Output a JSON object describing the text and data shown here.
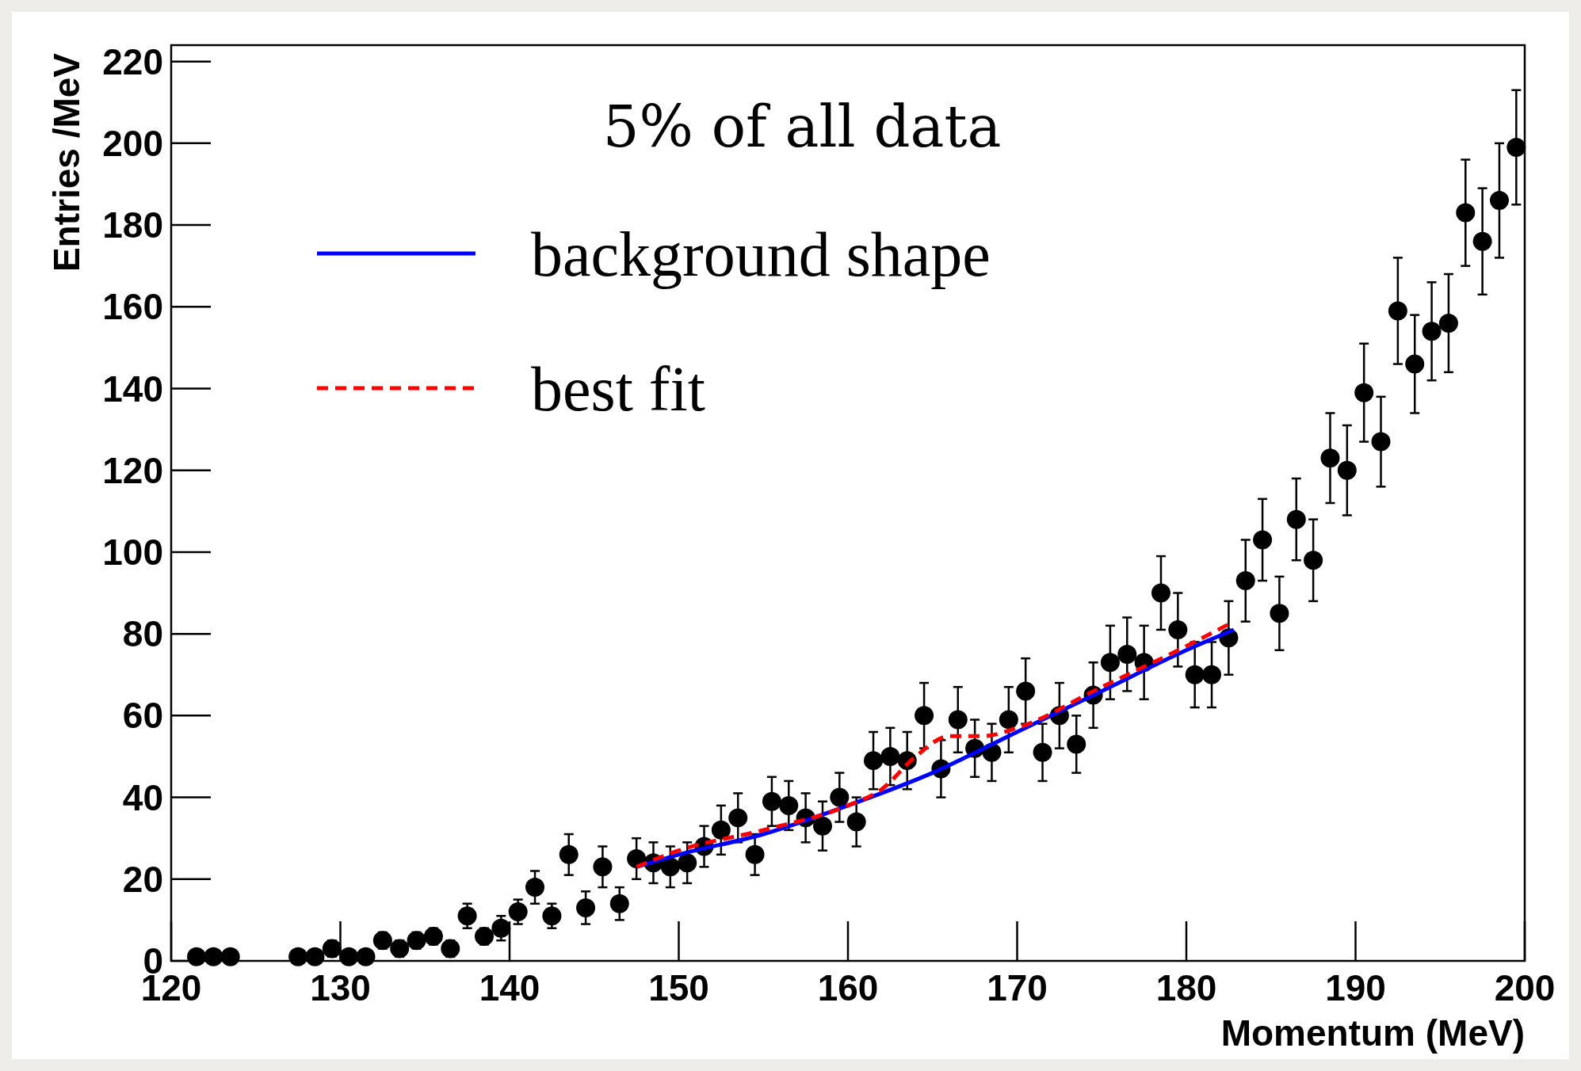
{
  "chart_data": {
    "type": "scatter",
    "xlabel": "Momentum (MeV)",
    "ylabel": "Entries /MeV",
    "annotations": [
      "5% of all data"
    ],
    "xlim": [
      120,
      200
    ],
    "ylim": [
      0,
      224
    ],
    "xticks": [
      120,
      130,
      140,
      150,
      160,
      170,
      180,
      190,
      200
    ],
    "yticks": [
      0,
      20,
      40,
      60,
      80,
      100,
      120,
      140,
      160,
      180,
      200,
      220
    ],
    "legend": "top left",
    "grid": false,
    "series": [
      {
        "color": "#000000",
        "marker": "circle",
        "x": [
          121.5,
          122.5,
          123.5,
          127.5,
          128.5,
          129.5,
          130.5,
          131.5,
          132.5,
          133.5,
          134.5,
          135.5,
          136.5,
          137.5,
          138.5,
          139.5,
          140.5,
          141.5,
          142.5,
          143.5,
          144.5,
          145.5,
          146.5,
          147.5,
          148.5,
          149.5,
          150.5,
          151.5,
          152.5,
          153.5,
          154.5,
          155.5,
          156.5,
          157.5,
          158.5,
          159.5,
          160.5,
          161.5,
          162.5,
          163.5,
          164.5,
          165.5,
          166.5,
          167.5,
          168.5,
          169.5,
          170.5,
          171.5,
          172.5,
          173.5,
          174.5,
          175.5,
          176.5,
          177.5,
          178.5,
          179.5,
          180.5,
          181.5,
          182.5,
          183.5,
          184.5,
          185.5,
          186.5,
          187.5,
          188.5,
          189.5,
          190.5,
          191.5,
          192.5,
          193.5,
          194.5,
          195.5,
          196.5,
          197.5,
          198.5,
          199.5
        ],
        "values": [
          1,
          1,
          1,
          1,
          1,
          3,
          1,
          1,
          5,
          3,
          5,
          6,
          3,
          11,
          6,
          8,
          12,
          18,
          11,
          26,
          13,
          23,
          14,
          25,
          24,
          23,
          24,
          28,
          32,
          35,
          26,
          39,
          38,
          35,
          33,
          40,
          34,
          49,
          50,
          49,
          60,
          47,
          59,
          52,
          51,
          59,
          66,
          51,
          60,
          53,
          65,
          73,
          75,
          73,
          90,
          81,
          70,
          70,
          79,
          93,
          103,
          85,
          108,
          98,
          123,
          120,
          139,
          127,
          159,
          146,
          154,
          156,
          183,
          176,
          186,
          199
        ],
        "errors": [
          1,
          1,
          1,
          1,
          1,
          2,
          1,
          1,
          2,
          2,
          2,
          2,
          2,
          3,
          2,
          3,
          3,
          4,
          3,
          5,
          4,
          5,
          4,
          5,
          5,
          5,
          5,
          5,
          6,
          6,
          5,
          6,
          6,
          6,
          6,
          6,
          6,
          7,
          7,
          7,
          8,
          7,
          8,
          7,
          7,
          8,
          8,
          7,
          8,
          7,
          8,
          9,
          9,
          9,
          9,
          9,
          8,
          8,
          9,
          10,
          10,
          9,
          10,
          10,
          11,
          11,
          12,
          11,
          13,
          12,
          12,
          12,
          13,
          13,
          14,
          14
        ]
      },
      {
        "type": "line",
        "name": "background shape",
        "color": "#0000ff",
        "line_style": "solid",
        "x": [
          147.5,
          150,
          155,
          160,
          165,
          170,
          175,
          180,
          182.8
        ],
        "values": [
          23,
          26,
          31,
          38,
          46,
          56,
          66,
          76,
          81
        ]
      },
      {
        "type": "line",
        "name": "best fit",
        "color": "#ff0000",
        "line_style": "dashed",
        "x": [
          147.5,
          150,
          155,
          160,
          162,
          164,
          166,
          168,
          170,
          175,
          180,
          182.8
        ],
        "values": [
          23,
          27,
          32,
          38,
          42,
          50,
          55,
          55,
          57,
          67,
          77,
          83
        ]
      }
    ]
  }
}
